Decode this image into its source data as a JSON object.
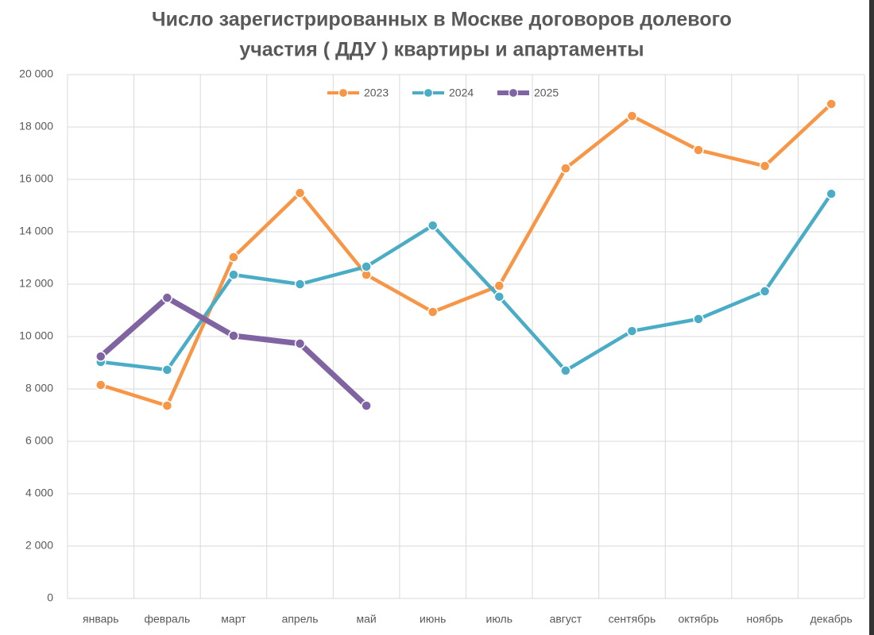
{
  "chart_data": {
    "type": "line",
    "title": [
      "Число зарегистрированных в Москве договоров долевого",
      "участия ( ДДУ ) квартиры и апартаменты"
    ],
    "categories": [
      "январь",
      "февраль",
      "март",
      "апрель",
      "май",
      "июнь",
      "июль",
      "август",
      "сентябрь",
      "октябрь",
      "ноябрь",
      "декабрь"
    ],
    "series": [
      {
        "name": "2023",
        "color": "#f79646",
        "values": [
          8150,
          7360,
          13030,
          15480,
          12360,
          10940,
          11940,
          16420,
          18420,
          17120,
          16510,
          18880
        ]
      },
      {
        "name": "2024",
        "color": "#4bacc6",
        "values": [
          9030,
          8730,
          12360,
          12000,
          12670,
          14240,
          11520,
          8700,
          10210,
          10670,
          11730,
          15450
        ]
      },
      {
        "name": "2025",
        "color": "#8064a2",
        "values": [
          9240,
          11480,
          10030,
          9730,
          7360,
          null,
          null,
          null,
          null,
          null,
          null,
          null
        ]
      }
    ],
    "ylim": [
      0,
      20000
    ],
    "yticks": [
      0,
      {
        "value": 2000,
        "label": "2 000"
      },
      {
        "value": 4000,
        "label": "4 000"
      },
      {
        "value": 6000,
        "label": "6 000"
      },
      {
        "value": 8000,
        "label": "8 000"
      },
      {
        "value": 10000,
        "label": "10 000"
      },
      {
        "value": 12000,
        "label": "12 000"
      },
      {
        "value": 14000,
        "label": "14 000"
      },
      {
        "value": 16000,
        "label": "16 000"
      },
      {
        "value": 18000,
        "label": "18 000"
      },
      {
        "value": 20000,
        "label": "20 000"
      }
    ],
    "grid": true,
    "legend": "top"
  }
}
